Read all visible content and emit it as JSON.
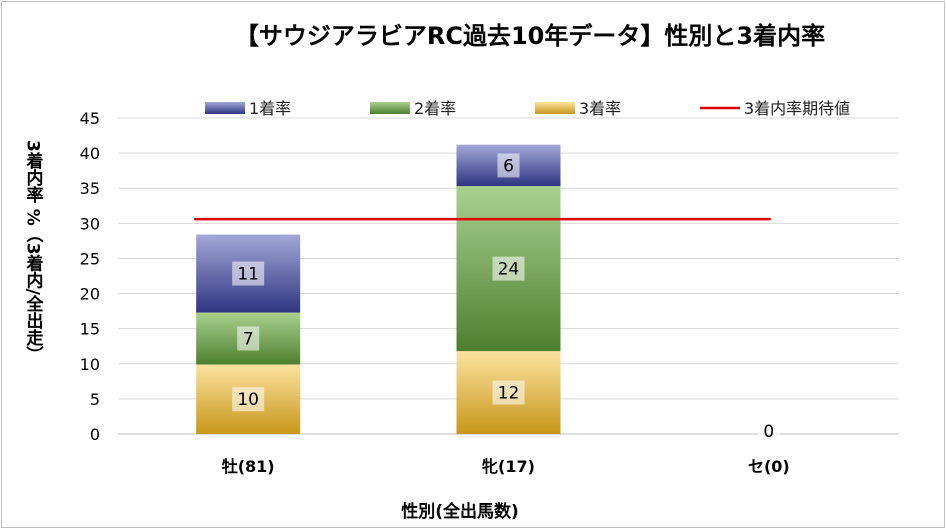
{
  "chart_data": {
    "type": "bar",
    "stacked": true,
    "title": "【サウジアラビアRC過去10年データ】性別と3着内率",
    "xlabel": "性別(全出馬数)",
    "ylabel": "3着内率 %（3着内/全出走）",
    "ylim": [
      0,
      45
    ],
    "yticks": [
      0,
      5,
      10,
      15,
      20,
      25,
      30,
      35,
      40,
      45
    ],
    "grid": true,
    "legend_position": "top",
    "categories": [
      "牡(81)",
      "牝(17)",
      "セ(0)"
    ],
    "series": [
      {
        "name": "3着率",
        "values": [
          9.9,
          11.8,
          0
        ],
        "labels": [
          "10",
          "12",
          "0"
        ],
        "color_top": "#fbe3a0",
        "color_bottom": "#c8961a"
      },
      {
        "name": "2着率",
        "values": [
          7.4,
          23.5,
          0
        ],
        "labels": [
          "7",
          "24",
          ""
        ],
        "color_top": "#a9d18e",
        "color_bottom": "#4e7f2f"
      },
      {
        "name": "1着率",
        "values": [
          11.1,
          5.9,
          0
        ],
        "labels": [
          "11",
          "6",
          ""
        ],
        "color_top": "#a3a8d8",
        "color_bottom": "#2e3580"
      }
    ],
    "reference_line": {
      "name": "3着内率期待値",
      "value": 30.6,
      "color": "#e00000"
    }
  }
}
